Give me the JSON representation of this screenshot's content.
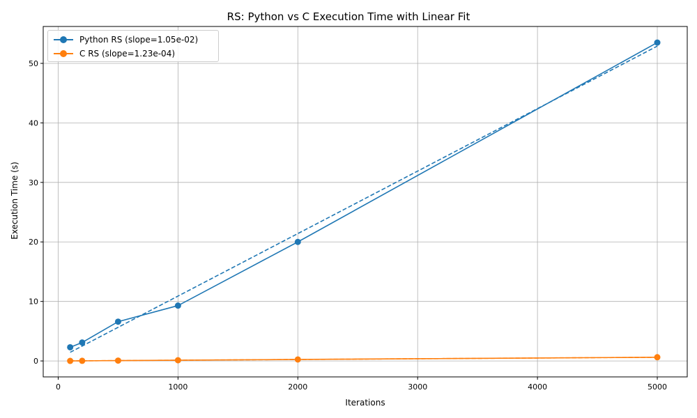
{
  "chart_data": {
    "type": "line",
    "title": "RS: Python vs C Execution Time with Linear Fit",
    "xlabel": "Iterations",
    "ylabel": "Execution Time (s)",
    "xlim": [
      -125,
      5250
    ],
    "ylim": [
      -2.68,
      56.2
    ],
    "xticks": [
      0,
      1000,
      2000,
      3000,
      4000,
      5000
    ],
    "yticks": [
      0,
      10,
      20,
      30,
      40,
      50
    ],
    "grid": true,
    "legend_position": "top-left",
    "series": [
      {
        "name": "Python RS (slope=1.05e-02)",
        "color": "#1f77b4",
        "x": [
          100,
          200,
          500,
          1000,
          2000,
          5000
        ],
        "values": [
          2.3,
          3.1,
          6.6,
          9.3,
          20.0,
          53.5
        ],
        "fit": {
          "slope": 0.0105,
          "intercept": 0.4
        }
      },
      {
        "name": "C RS (slope=1.23e-04)",
        "color": "#ff7f0e",
        "x": [
          100,
          200,
          500,
          1000,
          2000,
          5000
        ],
        "values": [
          0.01,
          0.02,
          0.06,
          0.12,
          0.25,
          0.62
        ],
        "fit": {
          "slope": 0.000123,
          "intercept": 0.0
        }
      }
    ]
  }
}
